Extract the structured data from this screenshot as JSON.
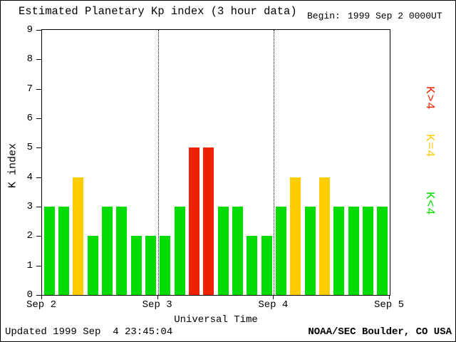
{
  "chart_data": {
    "type": "bar",
    "title": "Estimated Planetary Kp index (3 hour data)",
    "begin_label": "Begin:",
    "begin_time": "1999 Sep 2 0000UT",
    "xlabel": "Universal Time",
    "ylabel": "K index",
    "ylim": [
      0,
      9
    ],
    "yticks": [
      0,
      1,
      2,
      3,
      4,
      5,
      6,
      7,
      8,
      9
    ],
    "x_day_labels": [
      "Sep 2",
      "Sep 3",
      "Sep 4",
      "Sep 5"
    ],
    "hours_per_bar": 3,
    "values": [
      3,
      3,
      4,
      2,
      3,
      3,
      2,
      2,
      2,
      3,
      5,
      5,
      3,
      3,
      2,
      2,
      3,
      4,
      3,
      4,
      3,
      3,
      3,
      3
    ],
    "colors": {
      "k_below_4": "#00dc00",
      "k_equal_4": "#ffcc00",
      "k_above_4": "#ee2200"
    },
    "legend": [
      {
        "label": "K>4",
        "color": "#ee2200"
      },
      {
        "label": "K=4",
        "color": "#ffcc00"
      },
      {
        "label": "K<4",
        "color": "#00dc00"
      }
    ],
    "grid": "dotted vertical lines at day boundaries",
    "legend_position": "right"
  },
  "footer": {
    "updated": "Updated 1999 Sep  4 23:45:04",
    "credit": "NOAA/SEC Boulder, CO USA"
  }
}
